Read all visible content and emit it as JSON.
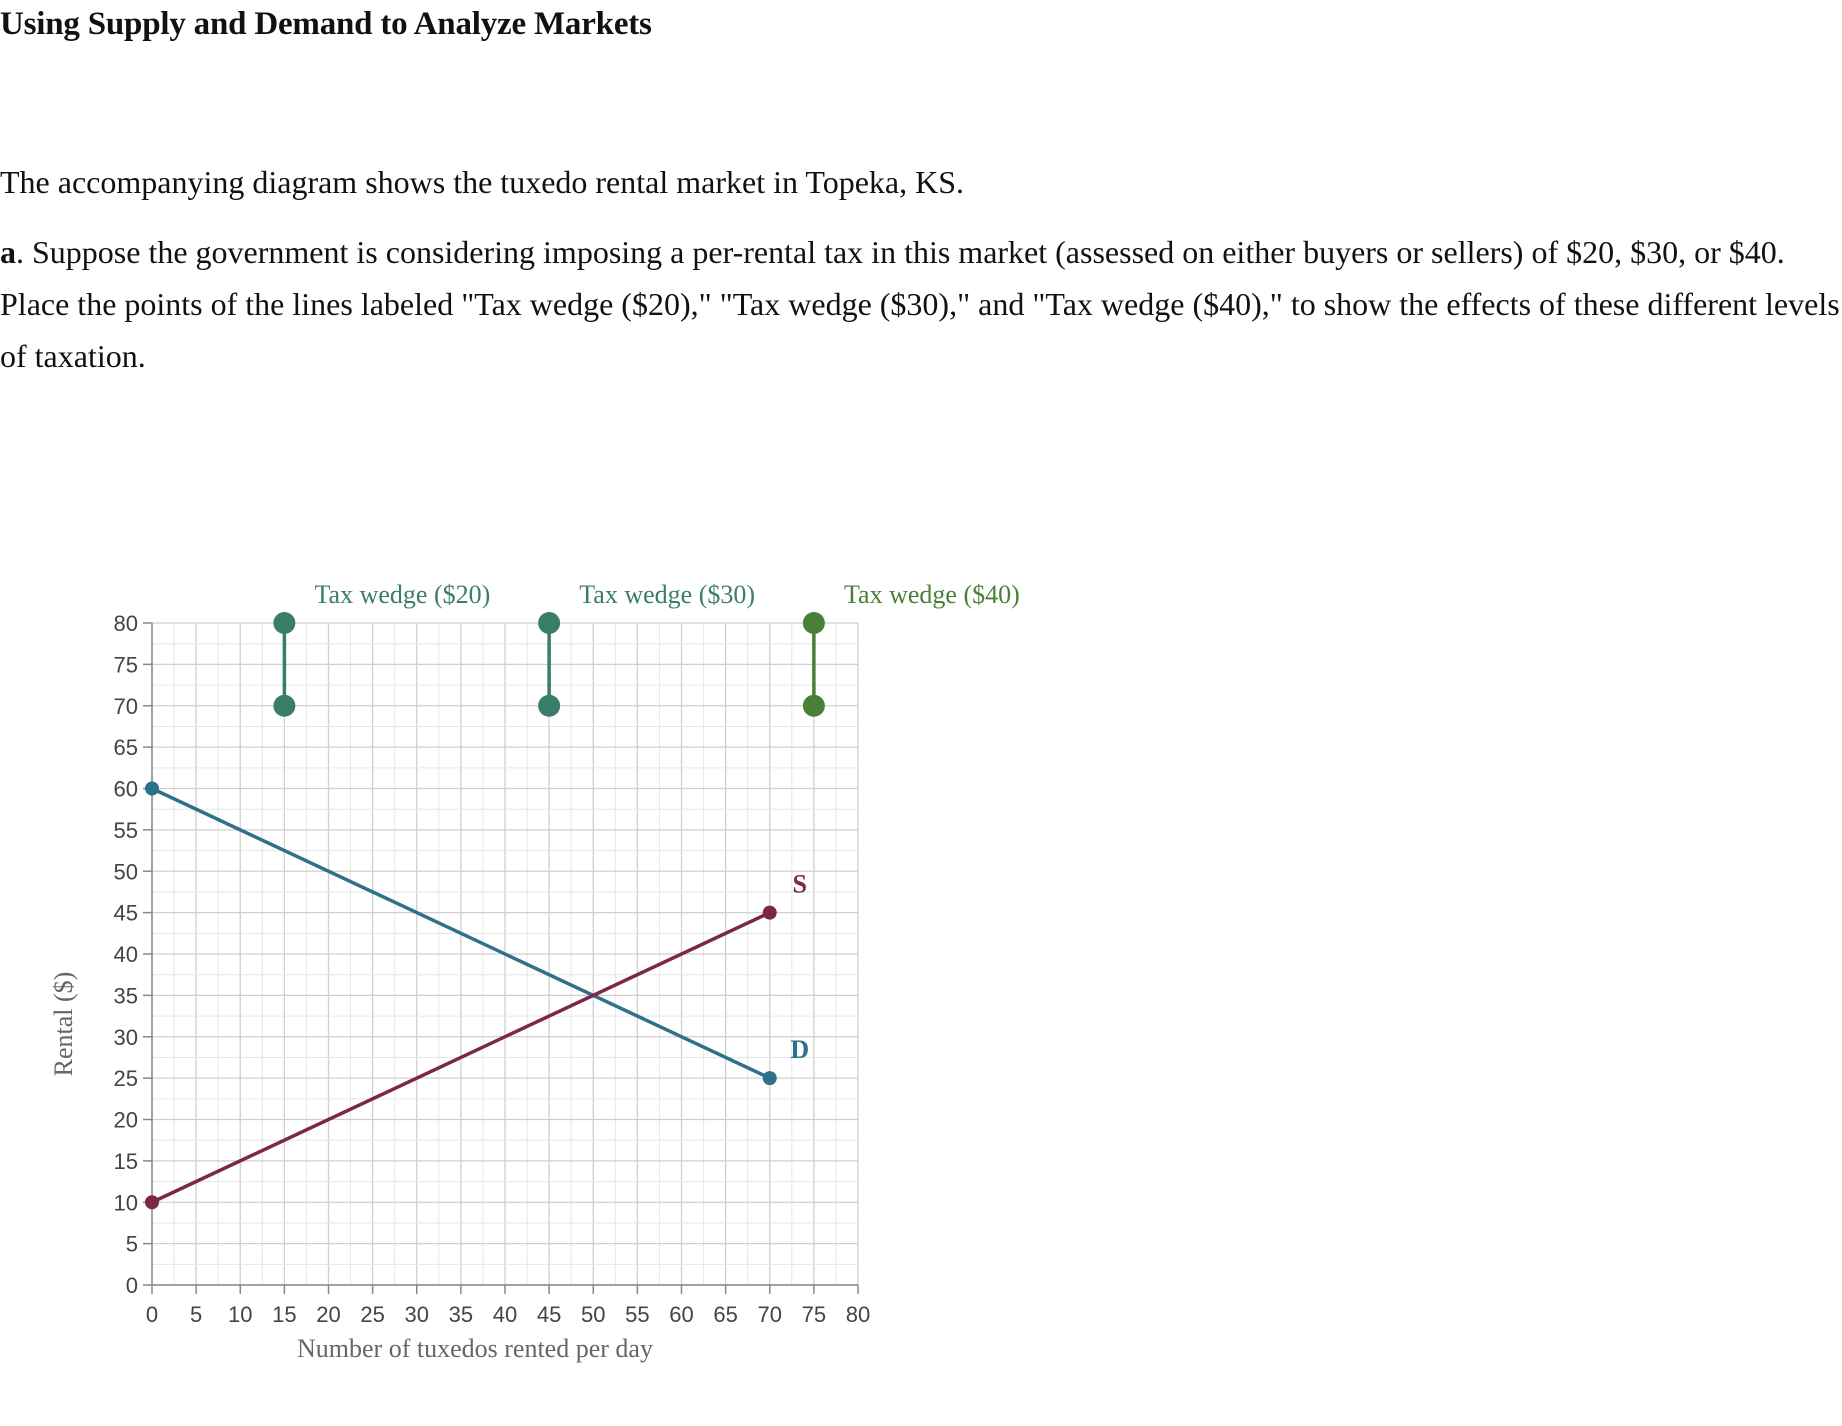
{
  "page": {
    "title": "Using Supply and Demand to Analyze Markets",
    "intro": "The accompanying diagram shows the tuxedo rental market in Topeka, KS.",
    "question_prefix": "a",
    "question_text": ". Suppose the government is considering imposing a per-rental tax in this market (assessed on either buyers or sellers) of $20, $30, or $40. Place the points of the lines labeled \"Tax wedge ($20),\" \"Tax wedge ($30),\" and \"Tax wedge ($40),\" to show the effects of these different levels of taxation."
  },
  "chart_data": {
    "type": "line",
    "xlabel": "Number of tuxedos rented per day",
    "ylabel": "Rental ($)",
    "xlim": [
      0,
      80
    ],
    "ylim": [
      0,
      80
    ],
    "x_ticks": [
      0,
      5,
      10,
      15,
      20,
      25,
      30,
      35,
      40,
      45,
      50,
      55,
      60,
      65,
      70,
      75,
      80
    ],
    "y_ticks": [
      0,
      5,
      10,
      15,
      20,
      25,
      30,
      35,
      40,
      45,
      50,
      55,
      60,
      65,
      70,
      75,
      80
    ],
    "grid": true,
    "series": [
      {
        "name": "D",
        "color": "#2e7289",
        "points": [
          [
            0,
            60
          ],
          [
            70,
            25
          ]
        ]
      },
      {
        "name": "S",
        "color": "#7a2845",
        "points": [
          [
            0,
            10
          ],
          [
            70,
            45
          ]
        ]
      }
    ],
    "tax_wedges": [
      {
        "label": "Tax wedge ($20)",
        "color": "#3a7d6a",
        "x": 15,
        "y_top": 80,
        "y_bottom": 70
      },
      {
        "label": "Tax wedge ($30)",
        "color": "#3a7d6a",
        "x": 45,
        "y_top": 80,
        "y_bottom": 70
      },
      {
        "label": "Tax wedge ($40)",
        "color": "#4a7f38",
        "x": 75,
        "y_top": 80,
        "y_bottom": 70
      }
    ]
  }
}
